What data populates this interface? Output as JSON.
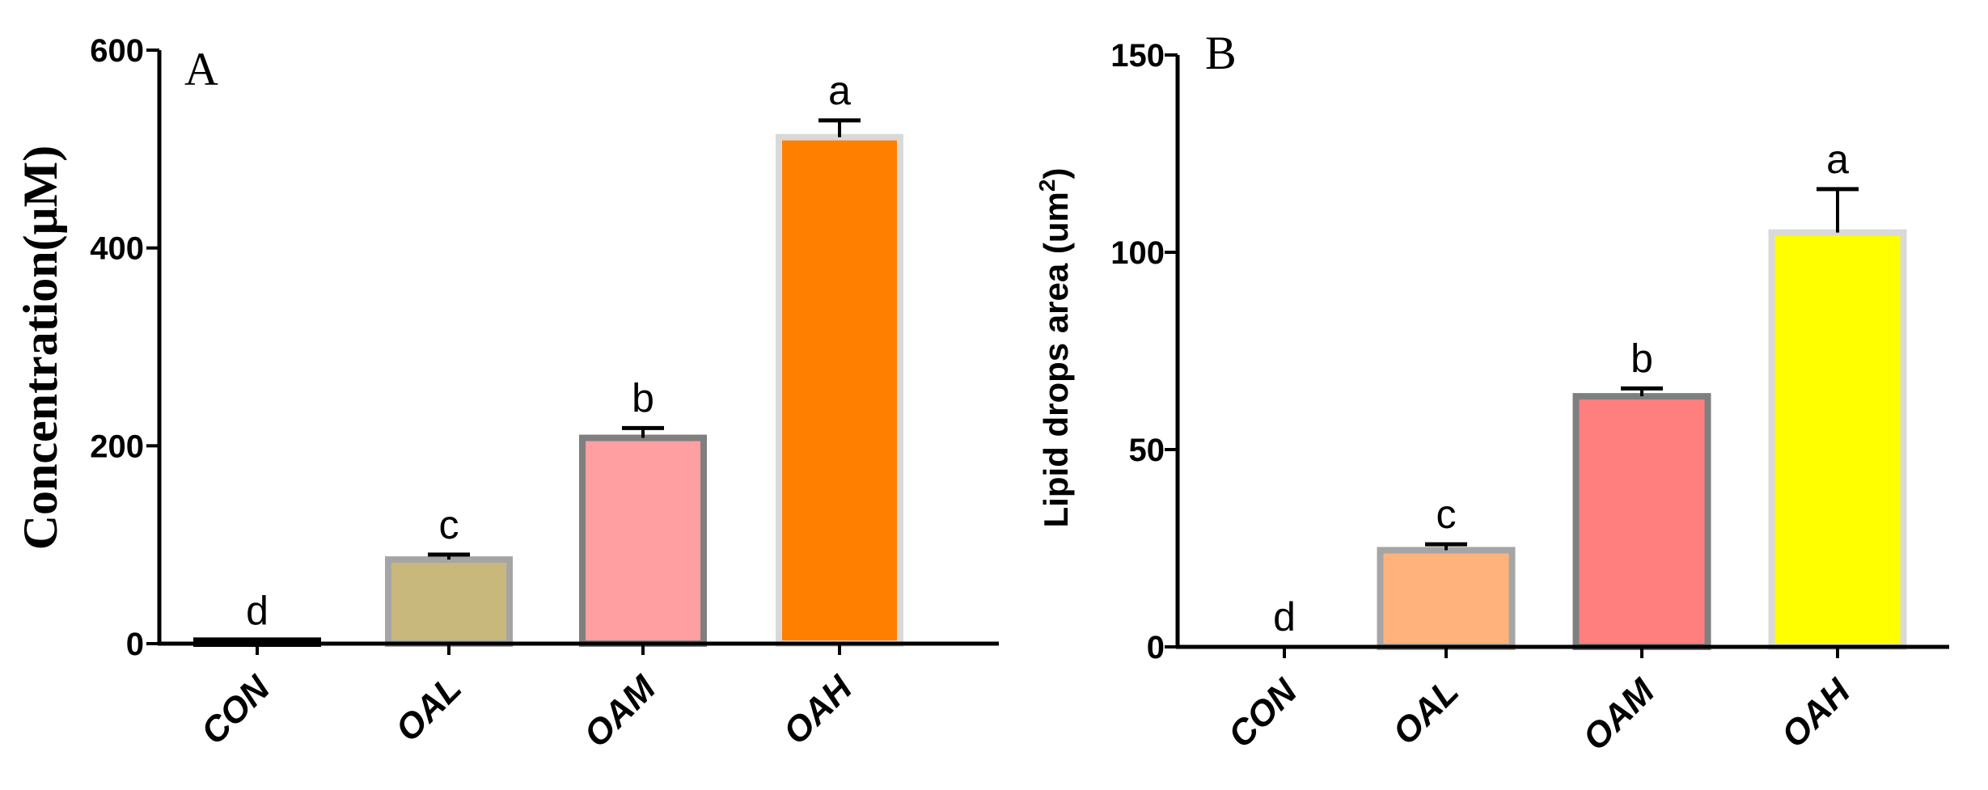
{
  "chart_data": [
    {
      "type": "bar",
      "panel": "A",
      "ylabel": "Concentration(μM)",
      "ylim": [
        0,
        600
      ],
      "yticks": [
        0,
        200,
        400,
        600
      ],
      "categories": [
        "CON",
        "OAL",
        "OAM",
        "OAH"
      ],
      "values": [
        3,
        85,
        208,
        512
      ],
      "errors": [
        0,
        5,
        10,
        17
      ],
      "significance": [
        "d",
        "c",
        "b",
        "a"
      ],
      "colors": [
        "#000000",
        "#c8b87c",
        "#ff9fa1",
        "#ff8000"
      ],
      "edge_colors": [
        "#000000",
        "#a5a5a5",
        "#7f7f7f",
        "#d9d9d9"
      ]
    },
    {
      "type": "bar",
      "panel": "B",
      "ylabel": "Lipid drops area (um",
      "ylabel_sup": "2",
      "ylabel_close": ")",
      "ylim": [
        0,
        150
      ],
      "yticks": [
        0,
        50,
        100,
        150
      ],
      "categories": [
        "CON",
        "OAL",
        "OAM",
        "OAH"
      ],
      "values": [
        0,
        24.5,
        63.5,
        105
      ],
      "errors": [
        0,
        1.5,
        2,
        11
      ],
      "significance": [
        "d",
        "c",
        "b",
        "a"
      ],
      "colors": [
        "#000000",
        "#ffb27c",
        "#ff7f7f",
        "#ffff00"
      ],
      "edge_colors": [
        "#000000",
        "#a5a5a5",
        "#7f7f7f",
        "#d9d9d9"
      ]
    }
  ]
}
